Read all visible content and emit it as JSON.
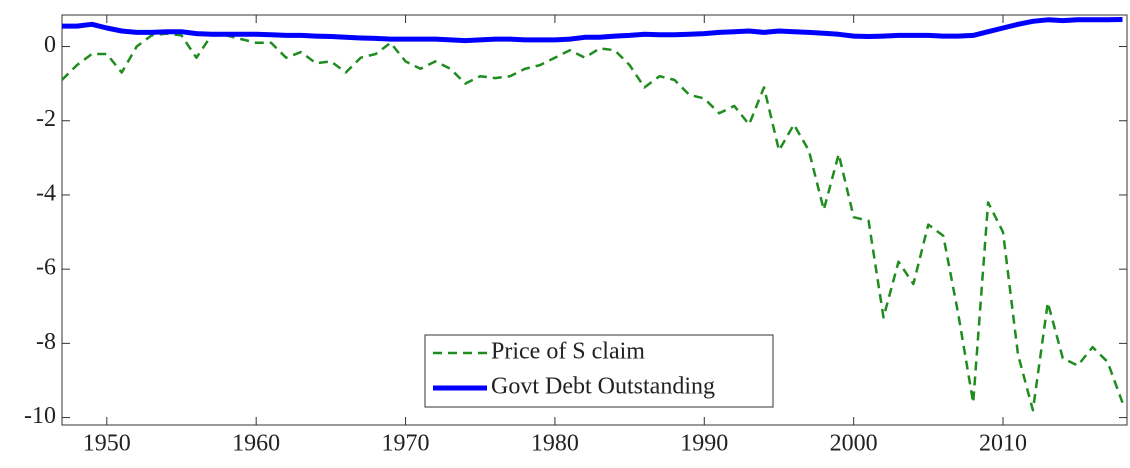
{
  "chart_data": {
    "type": "line",
    "x": [
      1947,
      1948,
      1949,
      1950,
      1951,
      1952,
      1953,
      1954,
      1955,
      1956,
      1957,
      1958,
      1959,
      1960,
      1961,
      1962,
      1963,
      1964,
      1965,
      1966,
      1967,
      1968,
      1969,
      1970,
      1971,
      1972,
      1973,
      1974,
      1975,
      1976,
      1977,
      1978,
      1979,
      1980,
      1981,
      1982,
      1983,
      1984,
      1985,
      1986,
      1987,
      1988,
      1989,
      1990,
      1991,
      1992,
      1993,
      1994,
      1995,
      1996,
      1997,
      1998,
      1999,
      2000,
      2001,
      2002,
      2003,
      2004,
      2005,
      2006,
      2007,
      2008,
      2009,
      2010,
      2011,
      2012,
      2013,
      2014,
      2015,
      2016,
      2017,
      2018
    ],
    "series": [
      {
        "name": "Price of S claim",
        "color": "#1e8c1e",
        "dash": true,
        "values": [
          -0.9,
          -0.5,
          -0.2,
          -0.2,
          -0.7,
          0.0,
          0.3,
          0.35,
          0.3,
          -0.3,
          0.3,
          0.3,
          0.2,
          0.1,
          0.1,
          -0.3,
          -0.15,
          -0.45,
          -0.4,
          -0.7,
          -0.3,
          -0.2,
          0.1,
          -0.4,
          -0.6,
          -0.4,
          -0.6,
          -1.0,
          -0.8,
          -0.85,
          -0.8,
          -0.6,
          -0.5,
          -0.3,
          -0.1,
          -0.3,
          -0.05,
          -0.1,
          -0.5,
          -1.1,
          -0.8,
          -0.9,
          -1.3,
          -1.4,
          -1.8,
          -1.6,
          -2.1,
          -1.1,
          -2.8,
          -2.1,
          -2.8,
          -4.4,
          -2.9,
          -4.6,
          -4.7,
          -7.3,
          -5.8,
          -6.4,
          -4.8,
          -5.1,
          -7.2,
          -9.6,
          -4.2,
          -5.0,
          -8.3,
          -9.8,
          -6.9,
          -8.4,
          -8.6,
          -8.1,
          -8.5,
          -9.6
        ]
      },
      {
        "name": "Govt Debt Outstanding",
        "color": "#0000ff",
        "dash": false,
        "values": [
          0.55,
          0.55,
          0.6,
          0.5,
          0.42,
          0.38,
          0.38,
          0.4,
          0.4,
          0.35,
          0.33,
          0.33,
          0.33,
          0.33,
          0.32,
          0.3,
          0.3,
          0.28,
          0.27,
          0.25,
          0.23,
          0.22,
          0.2,
          0.2,
          0.2,
          0.2,
          0.18,
          0.16,
          0.18,
          0.2,
          0.2,
          0.18,
          0.18,
          0.18,
          0.2,
          0.25,
          0.25,
          0.28,
          0.3,
          0.33,
          0.32,
          0.32,
          0.33,
          0.35,
          0.38,
          0.4,
          0.42,
          0.38,
          0.42,
          0.4,
          0.38,
          0.36,
          0.33,
          0.28,
          0.27,
          0.28,
          0.3,
          0.3,
          0.3,
          0.28,
          0.28,
          0.3,
          0.4,
          0.5,
          0.6,
          0.68,
          0.72,
          0.7,
          0.72,
          0.72,
          0.72,
          0.73
        ]
      }
    ],
    "xlim": [
      1947,
      2018.3
    ],
    "xticks": [
      1950,
      1960,
      1970,
      1980,
      1990,
      2000,
      2010
    ],
    "ylim": [
      -10.2,
      0.85
    ],
    "yticks": [
      -10,
      -8,
      -6,
      -4,
      -2,
      0
    ],
    "legend": "lower center"
  }
}
